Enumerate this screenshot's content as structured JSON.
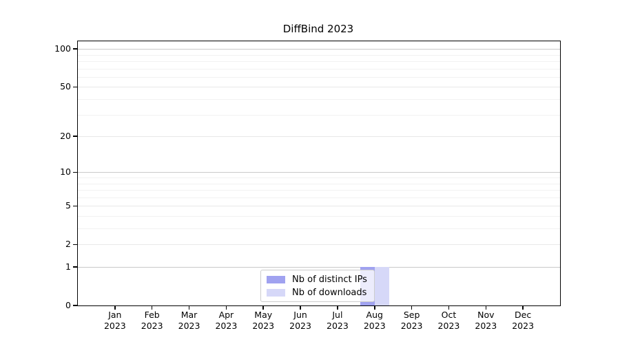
{
  "figure": {
    "background": "#ffffff"
  },
  "chart_data": {
    "type": "bar",
    "title": "DiffBind 2023",
    "categories": [
      "Jan 2023",
      "Feb 2023",
      "Mar 2023",
      "Apr 2023",
      "May 2023",
      "Jun 2023",
      "Jul 2023",
      "Aug 2023",
      "Sep 2023",
      "Oct 2023",
      "Nov 2023",
      "Dec 2023"
    ],
    "series": [
      {
        "name": "Nb of distinct IPs",
        "color": "#a0a2f0",
        "values": [
          0,
          0,
          0,
          0,
          0,
          0,
          0,
          1,
          0,
          0,
          0,
          0
        ]
      },
      {
        "name": "Nb of downloads",
        "color": "#d6d8f8",
        "values": [
          0,
          0,
          0,
          0,
          0,
          0,
          0,
          1,
          0,
          0,
          0,
          0
        ]
      }
    ],
    "xlabel": "",
    "ylabel": "",
    "y_scale": "log10(1+y)",
    "y_ticks": [
      0,
      1,
      2,
      5,
      10,
      20,
      50,
      100
    ],
    "y_minor_ticks": [
      3,
      4,
      6,
      7,
      8,
      9,
      30,
      40,
      60,
      70,
      80,
      90
    ],
    "ylim": [
      0,
      115
    ],
    "grid": true,
    "legend_position": "lower center"
  },
  "colors": {
    "axis": "#000000",
    "grid_decade": "#c9c9c9",
    "grid_labeled": "#e8e8e8",
    "grid_minor": "#f2f2f2",
    "legend_border": "#cccccc"
  }
}
